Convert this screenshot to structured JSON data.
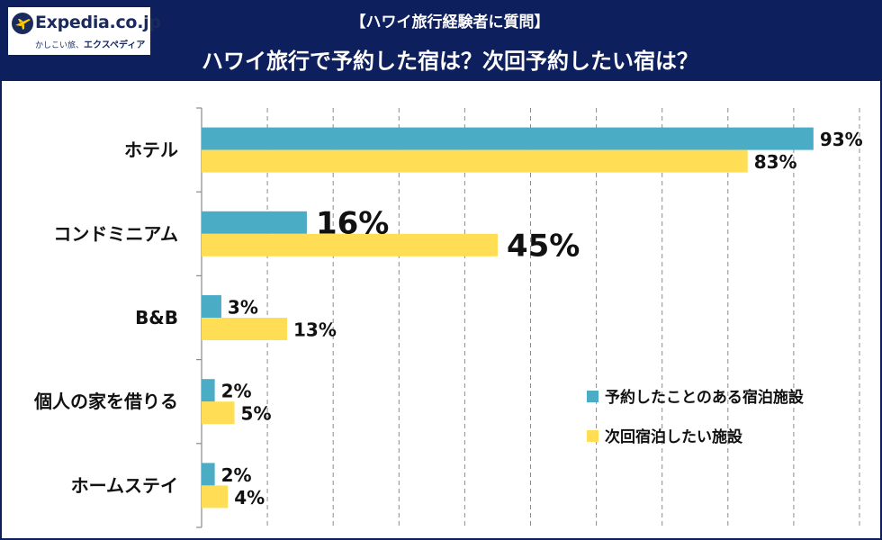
{
  "header": {
    "logo": {
      "brand": "Expedia.co.jp",
      "tagline_prefix": "かしこい旅、",
      "tagline_brand": "エクスペディア"
    },
    "subtitle": "【ハワイ旅行経験者に質問】",
    "title": "ハワイ旅行で予約した宿は？次回予約したい宿は？"
  },
  "colors": {
    "header_bg": "#0d1f5c",
    "series_booked": "#4bacc6",
    "series_next": "#ffdd55",
    "highlight_text": "#c00000",
    "label_text": "#111111",
    "grid": "#8c8c8c"
  },
  "chart_data": {
    "type": "bar",
    "orientation": "horizontal",
    "title": "ハワイ旅行で予約した宿は？次回予約したい宿は？",
    "subtitle": "【ハワイ旅行経験者に質問】",
    "categories": [
      "ホテル",
      "コンドミニアム",
      "B&B",
      "個人の家を借りる",
      "ホームステイ"
    ],
    "series": [
      {
        "name": "予約したことのある宿泊施設",
        "values": [
          93,
          16,
          3,
          2,
          2
        ],
        "labels": [
          "93%",
          "16%",
          "3%",
          "2%",
          "2%"
        ]
      },
      {
        "name": "次回宿泊したい施設",
        "values": [
          83,
          45,
          13,
          5,
          4
        ],
        "labels": [
          "83%",
          "45%",
          "13%",
          "5%",
          "4%"
        ]
      }
    ],
    "unit": "%",
    "xlim": [
      0,
      100
    ],
    "grid": true,
    "grid_step": 10,
    "legend_position": "bottom-right",
    "highlighted": [
      {
        "series": 0,
        "category": 1,
        "style": "large"
      },
      {
        "series": 1,
        "category": 1,
        "style": "large-red"
      }
    ]
  }
}
